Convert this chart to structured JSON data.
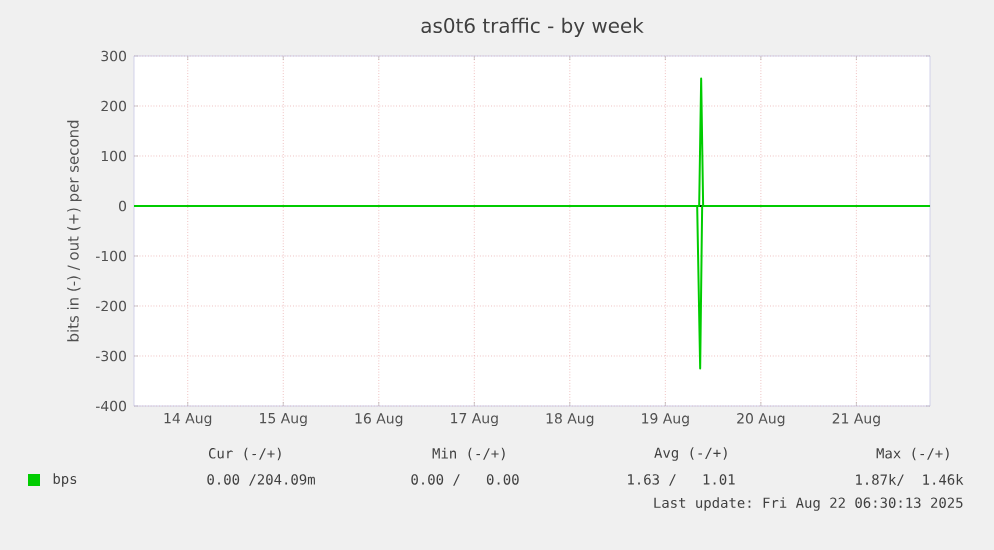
{
  "chart_data": {
    "type": "line",
    "title": "as0t6 traffic - by week",
    "ylabel": "bits in (-) / out (+) per second",
    "xlim": [
      "2025-08-13T22:30",
      "2025-08-22T06:30"
    ],
    "xticks": [
      {
        "value": "2025-08-14T12:00",
        "label": "14 Aug"
      },
      {
        "value": "2025-08-15T12:00",
        "label": "15 Aug"
      },
      {
        "value": "2025-08-16T12:00",
        "label": "16 Aug"
      },
      {
        "value": "2025-08-17T12:00",
        "label": "17 Aug"
      },
      {
        "value": "2025-08-18T12:00",
        "label": "18 Aug"
      },
      {
        "value": "2025-08-19T12:00",
        "label": "19 Aug"
      },
      {
        "value": "2025-08-20T12:00",
        "label": "20 Aug"
      },
      {
        "value": "2025-08-21T12:00",
        "label": "21 Aug"
      }
    ],
    "ylim": [
      -400,
      300
    ],
    "yticks": [
      -400,
      -300,
      -200,
      -100,
      0,
      100,
      200,
      300
    ],
    "grid": true,
    "legend": "bottom left",
    "marker": "none",
    "line_style": "solid",
    "series": [
      {
        "name": "bps",
        "color": "#00cc00",
        "x": [
          "2025-08-13T22:30",
          "2025-08-19T20:30",
          "2025-08-19T21:00",
          "2025-08-19T21:30",
          "2025-08-22T06:30"
        ],
        "values": [
          0,
          0,
          255,
          0,
          0
        ]
      },
      {
        "color": "#00cc00",
        "x": [
          "2025-08-13T22:30",
          "2025-08-19T20:00",
          "2025-08-19T20:45",
          "2025-08-19T21:15",
          "2025-08-22T06:30"
        ],
        "values": [
          0,
          0,
          -325,
          0,
          0
        ]
      }
    ],
    "annotations": [
      "Cur (-/+)",
      "Min (-/+)",
      "Avg (-/+)",
      "Max (-/+)",
      "0.00 /204.09m",
      "0.00 /   0.00",
      "1.63 /   1.01",
      "1.87k/  1.46k",
      "Last update: Fri Aug 22 06:30:13 2025"
    ]
  }
}
